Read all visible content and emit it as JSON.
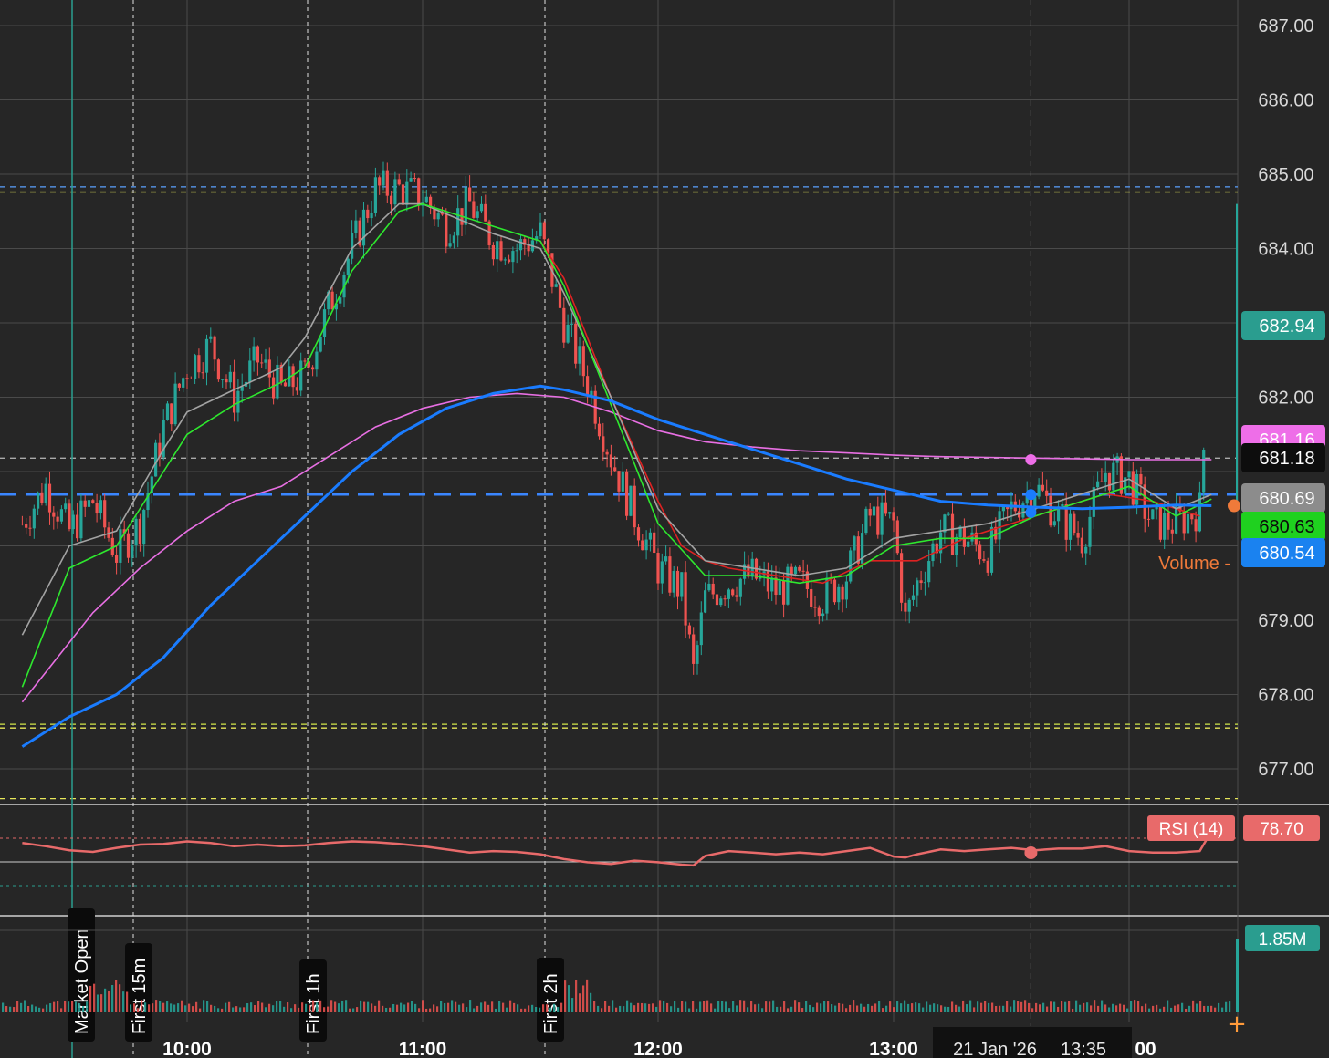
{
  "chart_data": {
    "type": "line",
    "subtype": "candlestick-intraday",
    "date_badge": "21 Jan '26",
    "crosshair_time": "13:35",
    "x_ticks": [
      "10:00",
      "11:00",
      "12:00",
      "13:00",
      "00"
    ],
    "y_ticks": [
      "687.00",
      "686.00",
      "685.00",
      "684.00",
      "682.00",
      "679.00",
      "678.00",
      "677.00"
    ],
    "ylim": [
      676.6,
      687.3
    ],
    "grid": true,
    "session_markers": [
      "Market Open",
      "First 15m",
      "First 1h",
      "First 2h"
    ],
    "price_badges": [
      {
        "label": "682.94",
        "value": 682.94,
        "color": "#2a9d8f"
      },
      {
        "label": "681.18",
        "value": 681.18,
        "color": "#0d0d0d"
      },
      {
        "label": "680.69",
        "value": 680.69,
        "color": "#8c8c8c"
      },
      {
        "label": "680.63",
        "value": 680.63,
        "color": "#1fd11f"
      },
      {
        "label": "680.54",
        "value": 680.54,
        "color": "#1a82f0"
      },
      {
        "label": "681.16",
        "value": 681.16,
        "color": "#ee6ee8"
      }
    ],
    "horizontal_levels": [
      {
        "value": 684.83,
        "color": "#5aa0ff"
      },
      {
        "value": 684.76,
        "color": "#e8e85a"
      },
      {
        "value": 681.18,
        "color": "#aaaaaa"
      },
      {
        "value": 680.69,
        "color": "#3a86ff"
      },
      {
        "value": 677.6,
        "color": "#d4e84a"
      },
      {
        "value": 677.55,
        "color": "#e8e85a"
      },
      {
        "value": 676.6,
        "color": "#e8e85a"
      }
    ],
    "series": [
      {
        "key": "price_close",
        "color": "#e06666",
        "values": [
          [
            9.3,
            680.3
          ],
          [
            9.4,
            680.8
          ],
          [
            9.5,
            680.2
          ],
          [
            9.6,
            680.6
          ],
          [
            9.7,
            679.9
          ],
          [
            9.8,
            680.3
          ],
          [
            9.9,
            681.6
          ],
          [
            10.0,
            682.4
          ],
          [
            10.1,
            682.7
          ],
          [
            10.2,
            682.0
          ],
          [
            10.3,
            682.5
          ],
          [
            10.4,
            682.1
          ],
          [
            10.5,
            682.3
          ],
          [
            10.6,
            683.2
          ],
          [
            10.7,
            684.0
          ],
          [
            10.8,
            684.8
          ],
          [
            10.9,
            684.8
          ],
          [
            11.0,
            684.7
          ],
          [
            11.1,
            684.3
          ],
          [
            11.2,
            684.6
          ],
          [
            11.3,
            684.1
          ],
          [
            11.4,
            684.0
          ],
          [
            11.5,
            684.2
          ],
          [
            11.6,
            683.0
          ],
          [
            11.7,
            682.2
          ],
          [
            11.8,
            681.2
          ],
          [
            11.9,
            680.4
          ],
          [
            12.0,
            679.7
          ],
          [
            12.1,
            679.4
          ],
          [
            12.15,
            678.3
          ],
          [
            12.2,
            679.3
          ],
          [
            12.3,
            679.5
          ],
          [
            12.4,
            679.6
          ],
          [
            12.5,
            679.4
          ],
          [
            12.6,
            679.5
          ],
          [
            12.7,
            679.3
          ],
          [
            12.8,
            679.6
          ],
          [
            12.9,
            680.4
          ],
          [
            13.0,
            680.3
          ],
          [
            13.05,
            679.0
          ],
          [
            13.1,
            679.5
          ],
          [
            13.2,
            680.2
          ],
          [
            13.3,
            680.1
          ],
          [
            13.4,
            679.9
          ],
          [
            13.5,
            680.5
          ],
          [
            13.6,
            680.8
          ],
          [
            13.7,
            680.4
          ],
          [
            13.8,
            680.1
          ],
          [
            13.9,
            681.0
          ],
          [
            14.0,
            680.9
          ],
          [
            14.1,
            680.3
          ],
          [
            14.2,
            680.3
          ],
          [
            14.3,
            680.5
          ],
          [
            14.35,
            682.94
          ]
        ]
      },
      {
        "key": "ema_fast",
        "color": "#2ee82e",
        "values": [
          [
            9.3,
            678.1
          ],
          [
            9.5,
            679.7
          ],
          [
            9.7,
            680.0
          ],
          [
            9.9,
            681.0
          ],
          [
            10.0,
            681.5
          ],
          [
            10.2,
            681.9
          ],
          [
            10.4,
            682.2
          ],
          [
            10.5,
            682.4
          ],
          [
            10.7,
            683.7
          ],
          [
            10.9,
            684.5
          ],
          [
            11.0,
            684.6
          ],
          [
            11.3,
            684.3
          ],
          [
            11.5,
            684.1
          ],
          [
            11.6,
            683.5
          ],
          [
            11.8,
            681.9
          ],
          [
            12.0,
            680.3
          ],
          [
            12.2,
            679.6
          ],
          [
            12.4,
            679.6
          ],
          [
            12.6,
            679.5
          ],
          [
            12.8,
            679.6
          ],
          [
            13.0,
            680.0
          ],
          [
            13.2,
            680.1
          ],
          [
            13.4,
            680.1
          ],
          [
            13.6,
            680.4
          ],
          [
            13.8,
            680.6
          ],
          [
            14.0,
            680.8
          ],
          [
            14.2,
            680.4
          ],
          [
            14.35,
            680.63
          ]
        ]
      },
      {
        "key": "ema_slow",
        "color": "#a3a3a3",
        "values": [
          [
            9.3,
            678.8
          ],
          [
            9.5,
            680.0
          ],
          [
            9.7,
            680.2
          ],
          [
            9.9,
            681.3
          ],
          [
            10.0,
            681.8
          ],
          [
            10.2,
            682.1
          ],
          [
            10.4,
            682.4
          ],
          [
            10.5,
            682.8
          ],
          [
            10.7,
            684.0
          ],
          [
            10.9,
            684.6
          ],
          [
            11.0,
            684.6
          ],
          [
            11.3,
            684.2
          ],
          [
            11.5,
            684.0
          ],
          [
            11.6,
            683.4
          ],
          [
            11.8,
            682.0
          ],
          [
            12.0,
            680.5
          ],
          [
            12.2,
            679.8
          ],
          [
            12.4,
            679.7
          ],
          [
            12.6,
            679.6
          ],
          [
            12.8,
            679.7
          ],
          [
            13.0,
            680.1
          ],
          [
            13.2,
            680.2
          ],
          [
            13.4,
            680.3
          ],
          [
            13.6,
            680.5
          ],
          [
            13.8,
            680.7
          ],
          [
            14.0,
            680.9
          ],
          [
            14.2,
            680.5
          ],
          [
            14.35,
            680.69
          ]
        ]
      },
      {
        "key": "ema_trend",
        "color": "#dd2222",
        "values": [
          [
            11.5,
            684.1
          ],
          [
            11.6,
            683.6
          ],
          [
            11.7,
            682.8
          ],
          [
            11.8,
            682.0
          ],
          [
            11.9,
            681.3
          ],
          [
            12.0,
            680.6
          ],
          [
            12.1,
            680.0
          ],
          [
            12.2,
            679.8
          ],
          [
            12.3,
            679.7
          ],
          [
            12.5,
            679.6
          ],
          [
            12.7,
            679.5
          ],
          [
            12.9,
            679.8
          ],
          [
            13.1,
            679.8
          ],
          [
            13.3,
            680.1
          ],
          [
            13.5,
            680.3
          ],
          [
            13.7,
            680.5
          ],
          [
            13.9,
            680.7
          ],
          [
            14.1,
            680.6
          ],
          [
            14.3,
            680.4
          ]
        ]
      },
      {
        "key": "vwap",
        "color": "#e86fe3",
        "values": [
          [
            9.3,
            677.9
          ],
          [
            9.5,
            678.7
          ],
          [
            9.6,
            679.1
          ],
          [
            9.8,
            679.7
          ],
          [
            10.0,
            680.2
          ],
          [
            10.2,
            680.6
          ],
          [
            10.4,
            680.8
          ],
          [
            10.6,
            681.2
          ],
          [
            10.8,
            681.6
          ],
          [
            11.0,
            681.85
          ],
          [
            11.2,
            682.0
          ],
          [
            11.4,
            682.05
          ],
          [
            11.6,
            682.0
          ],
          [
            11.8,
            681.8
          ],
          [
            12.0,
            681.55
          ],
          [
            12.2,
            681.4
          ],
          [
            12.4,
            681.33
          ],
          [
            12.6,
            681.28
          ],
          [
            12.8,
            681.25
          ],
          [
            13.0,
            681.22
          ],
          [
            13.2,
            681.2
          ],
          [
            13.4,
            681.19
          ],
          [
            13.6,
            681.18
          ],
          [
            13.8,
            681.17
          ],
          [
            14.0,
            681.16
          ],
          [
            14.35,
            681.16
          ]
        ]
      },
      {
        "key": "sma_long",
        "color": "#1a7cff",
        "values": [
          [
            9.3,
            677.3
          ],
          [
            9.5,
            677.7
          ],
          [
            9.7,
            678.0
          ],
          [
            9.9,
            678.5
          ],
          [
            10.1,
            679.2
          ],
          [
            10.3,
            679.8
          ],
          [
            10.5,
            680.4
          ],
          [
            10.7,
            681.0
          ],
          [
            10.9,
            681.5
          ],
          [
            11.1,
            681.85
          ],
          [
            11.3,
            682.05
          ],
          [
            11.5,
            682.15
          ],
          [
            11.6,
            682.1
          ],
          [
            11.8,
            681.95
          ],
          [
            12.0,
            681.7
          ],
          [
            12.2,
            681.5
          ],
          [
            12.4,
            681.3
          ],
          [
            12.6,
            681.1
          ],
          [
            12.8,
            680.9
          ],
          [
            13.0,
            680.75
          ],
          [
            13.2,
            680.6
          ],
          [
            13.4,
            680.55
          ],
          [
            13.6,
            680.52
          ],
          [
            13.8,
            680.5
          ],
          [
            14.0,
            680.52
          ],
          [
            14.2,
            680.55
          ],
          [
            14.35,
            680.54
          ]
        ]
      }
    ],
    "rsi": {
      "label": "RSI (14)",
      "value": "78.70",
      "color": "#e86a6a",
      "values": [
        [
          9.3,
          64
        ],
        [
          9.4,
          60
        ],
        [
          9.5,
          55
        ],
        [
          9.6,
          53
        ],
        [
          9.7,
          58
        ],
        [
          9.8,
          62
        ],
        [
          9.9,
          63
        ],
        [
          10.0,
          66
        ],
        [
          10.1,
          64
        ],
        [
          10.2,
          60
        ],
        [
          10.3,
          62
        ],
        [
          10.4,
          60
        ],
        [
          10.5,
          61
        ],
        [
          10.6,
          64
        ],
        [
          10.7,
          66
        ],
        [
          10.8,
          65
        ],
        [
          10.9,
          63
        ],
        [
          11.0,
          60
        ],
        [
          11.1,
          56
        ],
        [
          11.2,
          52
        ],
        [
          11.3,
          54
        ],
        [
          11.4,
          53
        ],
        [
          11.5,
          50
        ],
        [
          11.6,
          44
        ],
        [
          11.7,
          40
        ],
        [
          11.8,
          38
        ],
        [
          11.9,
          42
        ],
        [
          12.0,
          40
        ],
        [
          12.1,
          37
        ],
        [
          12.15,
          36
        ],
        [
          12.2,
          48
        ],
        [
          12.3,
          54
        ],
        [
          12.4,
          52
        ],
        [
          12.5,
          50
        ],
        [
          12.6,
          52
        ],
        [
          12.7,
          50
        ],
        [
          12.8,
          54
        ],
        [
          12.9,
          58
        ],
        [
          13.0,
          47
        ],
        [
          13.05,
          46
        ],
        [
          13.1,
          50
        ],
        [
          13.2,
          56
        ],
        [
          13.3,
          54
        ],
        [
          13.4,
          56
        ],
        [
          13.5,
          58
        ],
        [
          13.6,
          55
        ],
        [
          13.7,
          57
        ],
        [
          13.8,
          57
        ],
        [
          13.9,
          60
        ],
        [
          14.0,
          54
        ],
        [
          14.1,
          52
        ],
        [
          14.2,
          52
        ],
        [
          14.3,
          54
        ],
        [
          14.35,
          78.7
        ]
      ]
    },
    "volume": {
      "label": "1.85M",
      "caption": "Volume -",
      "color": "#2a9d8f"
    }
  }
}
